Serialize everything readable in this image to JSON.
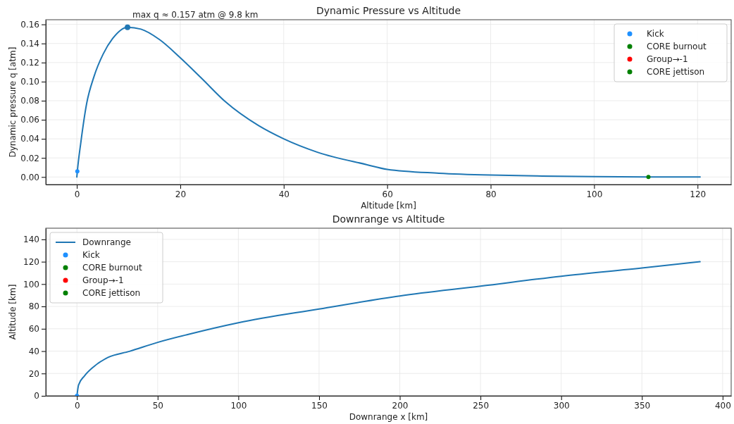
{
  "chart_data": [
    {
      "type": "line",
      "title": "Dynamic Pressure vs Altitude",
      "xlabel": "Altitude [km]",
      "ylabel": "Dynamic pressure q [atm]",
      "xlim": [
        -6.0,
        126.5
      ],
      "xticks": [
        0,
        20,
        40,
        60,
        80,
        100,
        120
      ],
      "ylim": [
        -0.0079,
        0.1649
      ],
      "yticks": [
        {
          "value": 0,
          "label": "0.00"
        },
        {
          "value": 0.02,
          "label": "0.02"
        },
        {
          "value": 0.04,
          "label": "0.04"
        },
        {
          "value": 0.06,
          "label": "0.06"
        },
        {
          "value": 0.08,
          "label": "0.08"
        },
        {
          "value": 0.1,
          "label": "0.10"
        },
        {
          "value": 0.12,
          "label": "0.12"
        },
        {
          "value": 0.14,
          "label": "0.14"
        },
        {
          "value": 0.16,
          "label": "0.16"
        }
      ],
      "grid": true,
      "legend": "top right",
      "annotations": [
        {
          "text": "max q ≈ 0.157 atm @ 9.8 km",
          "x": 9.8,
          "y": 0.157
        }
      ],
      "series": [
        {
          "color": "#1f77b4",
          "x": [
            0,
            0.1,
            0.77,
            1.9,
            3.3,
            5.1,
            6.9,
            9.8,
            12.4,
            16,
            20,
            24.2,
            28.7,
            35.1,
            40,
            46.5,
            56,
            60,
            70,
            80,
            90,
            100,
            110,
            120.5
          ],
          "values": [
            0,
            0.006,
            0.036,
            0.077,
            0.105,
            0.129,
            0.145,
            0.157,
            0.155,
            0.144,
            0.125,
            0.103,
            0.079,
            0.054,
            0.04,
            0.026,
            0.013,
            0.008,
            0.004,
            0.002,
            0.001,
            0.0004,
            0.0001,
            0
          ]
        },
        {
          "type": "scatter",
          "color": "#1f77b4",
          "marker": "circle",
          "x": [
            9.8
          ],
          "values": [
            0.157
          ]
        },
        {
          "type": "scatter",
          "name": "Kick",
          "color": "#1e90ff",
          "marker": "circle",
          "x": [
            0.1
          ],
          "values": [
            0.006
          ]
        },
        {
          "type": "scatter",
          "name": "CORE burnout",
          "color": "#008000",
          "marker": "circle"
        },
        {
          "type": "scatter",
          "name": "Group→-1",
          "color": "#ff0000",
          "marker": "circle"
        },
        {
          "type": "scatter",
          "name": "CORE jettison",
          "color": "#008000",
          "marker": "circle",
          "x": [
            110.5
          ],
          "values": [
            0
          ]
        }
      ]
    },
    {
      "type": "line",
      "title": "Downrange vs Altitude",
      "xlabel": "Downrange x [km]",
      "ylabel": "Altitude [km]",
      "xlim": [
        -19.3,
        405.3
      ],
      "xticks": [
        0,
        50,
        100,
        150,
        200,
        250,
        300,
        350,
        400
      ],
      "ylim": [
        0,
        150
      ],
      "yticks": [
        0,
        20,
        40,
        60,
        80,
        100,
        120,
        140
      ],
      "grid": true,
      "legend": "top left",
      "series": [
        {
          "name": "Downrange",
          "color": "#1f77b4",
          "x": [
            0,
            1,
            4.7,
            10.5,
            19.3,
            32.5,
            50,
            69,
            100,
            150,
            200,
            250,
            300,
            350,
            386
          ],
          "values": [
            0,
            9.7,
            17.9,
            26.2,
            34.4,
            39.8,
            47.8,
            55,
            65.4,
            77.7,
            89.4,
            98.1,
            107,
            114.4,
            120
          ]
        },
        {
          "type": "scatter",
          "name": "Kick",
          "color": "#1e90ff",
          "marker": "circle",
          "x": [
            0
          ],
          "values": [
            0
          ]
        },
        {
          "type": "scatter",
          "name": "CORE burnout",
          "color": "#008000",
          "marker": "circle"
        },
        {
          "type": "scatter",
          "name": "Group→-1",
          "color": "#ff0000",
          "marker": "circle"
        },
        {
          "type": "scatter",
          "name": "CORE jettison",
          "color": "#008000",
          "marker": "circle"
        }
      ]
    }
  ]
}
